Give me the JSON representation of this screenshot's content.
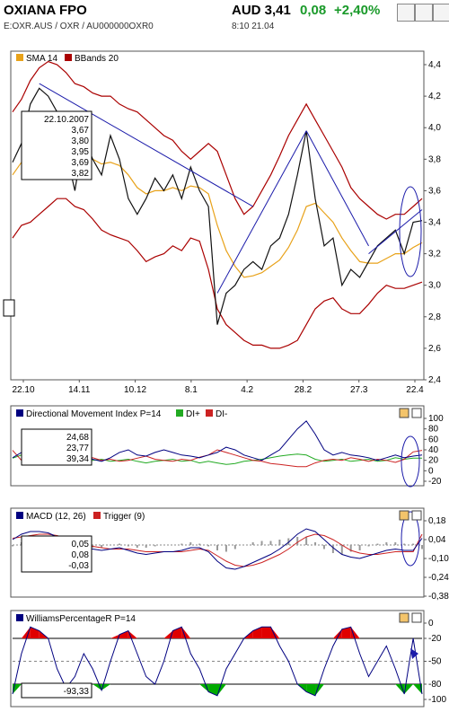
{
  "header": {
    "name": "OXIANA FPO",
    "price": "AUD 3,41",
    "change": "0,08",
    "change_pct": "+2,40%",
    "codes": "E:OXR.AUS  /  OXR  /  AU000000OXR0",
    "time_info": "8:10   21.04"
  },
  "colors": {
    "price": "#111111",
    "sma": "#e8a21a",
    "bbands": "#aa0000",
    "dmi": "#000080",
    "di_plus": "#22aa22",
    "di_minus": "#cc2222",
    "macd": "#000080",
    "trigger": "#cc2222",
    "williams": "#000080",
    "fill_red": "#e00000",
    "fill_green": "#00aa00",
    "trend": "#1c1caa"
  },
  "chart_data": [
    {
      "type": "line",
      "title": "",
      "legend": [
        "SMA 14",
        "BBands 20"
      ],
      "x_ticks": [
        "22.10",
        "14.11",
        "10.12",
        "8.1",
        "4.2",
        "28.2",
        "27.3",
        "22.4"
      ],
      "ylim": [
        2.4,
        4.4
      ],
      "y_ticks": [
        "4,4",
        "4,2",
        "4,0",
        "3,8",
        "3,6",
        "3,4",
        "3,2",
        "3,0",
        "2,8",
        "2,6",
        "2,4"
      ],
      "series": [
        {
          "name": "price",
          "values": [
            3.78,
            3.9,
            4.15,
            4.25,
            4.2,
            4.1,
            3.85,
            3.6,
            3.95,
            3.8,
            3.7,
            3.95,
            3.8,
            3.55,
            3.45,
            3.55,
            3.68,
            3.6,
            3.7,
            3.55,
            3.75,
            3.6,
            3.5,
            2.75,
            2.95,
            3.0,
            3.1,
            3.15,
            3.1,
            3.25,
            3.3,
            3.45,
            3.7,
            3.98,
            3.55,
            3.25,
            3.3,
            3.0,
            3.1,
            3.05,
            3.15,
            3.25,
            3.3,
            3.35,
            3.2,
            3.4,
            3.41
          ]
        },
        {
          "name": "SMA 14",
          "values": [
            3.7,
            3.78,
            3.86,
            3.92,
            3.96,
            3.97,
            3.95,
            3.88,
            3.84,
            3.8,
            3.77,
            3.78,
            3.76,
            3.7,
            3.62,
            3.58,
            3.6,
            3.6,
            3.62,
            3.6,
            3.63,
            3.62,
            3.58,
            3.38,
            3.22,
            3.12,
            3.05,
            3.06,
            3.08,
            3.12,
            3.16,
            3.24,
            3.35,
            3.5,
            3.52,
            3.46,
            3.4,
            3.3,
            3.22,
            3.15,
            3.14,
            3.14,
            3.17,
            3.2,
            3.2,
            3.24,
            3.27
          ]
        },
        {
          "name": "BBands upper",
          "values": [
            4.1,
            4.18,
            4.3,
            4.38,
            4.42,
            4.4,
            4.35,
            4.28,
            4.26,
            4.22,
            4.2,
            4.2,
            4.15,
            4.12,
            4.1,
            4.05,
            4.0,
            3.95,
            3.92,
            3.85,
            3.8,
            3.85,
            3.9,
            3.85,
            3.7,
            3.55,
            3.45,
            3.5,
            3.6,
            3.7,
            3.82,
            3.95,
            4.05,
            4.15,
            4.05,
            3.95,
            3.85,
            3.75,
            3.62,
            3.55,
            3.5,
            3.45,
            3.42,
            3.45,
            3.45,
            3.5,
            3.55
          ]
        },
        {
          "name": "BBands lower",
          "values": [
            3.3,
            3.38,
            3.4,
            3.45,
            3.5,
            3.55,
            3.55,
            3.5,
            3.48,
            3.42,
            3.35,
            3.32,
            3.3,
            3.28,
            3.22,
            3.15,
            3.18,
            3.2,
            3.25,
            3.22,
            3.3,
            3.28,
            3.1,
            2.85,
            2.75,
            2.7,
            2.65,
            2.62,
            2.62,
            2.6,
            2.6,
            2.62,
            2.65,
            2.75,
            2.85,
            2.9,
            2.92,
            2.85,
            2.82,
            2.82,
            2.88,
            2.95,
            3.0,
            2.98,
            2.98,
            3.0,
            3.02
          ]
        }
      ],
      "data_box": {
        "date": "22.10.2007",
        "values": [
          "3,67",
          "3,80",
          "3,95",
          "3,69",
          "3,82"
        ]
      }
    },
    {
      "type": "line",
      "title": "",
      "legend": [
        "Directional Movement Index P=14",
        "DI+",
        "DI-"
      ],
      "ylim": [
        -20,
        100
      ],
      "y_ticks": [
        "100",
        "80",
        "60",
        "40",
        "20",
        "0",
        "-20"
      ],
      "series": [
        {
          "name": "Directional Movement Index P=14",
          "values": [
            25,
            35,
            40,
            30,
            20,
            15,
            20,
            25,
            30,
            22,
            18,
            25,
            35,
            40,
            30,
            28,
            35,
            40,
            35,
            30,
            28,
            25,
            30,
            35,
            45,
            40,
            30,
            25,
            20,
            30,
            40,
            60,
            80,
            95,
            70,
            40,
            30,
            35,
            30,
            28,
            25,
            20,
            25,
            30,
            25,
            28,
            30
          ]
        },
        {
          "name": "DI+",
          "values": [
            24,
            30,
            28,
            20,
            18,
            22,
            25,
            20,
            18,
            20,
            22,
            18,
            20,
            22,
            18,
            15,
            18,
            20,
            22,
            18,
            20,
            15,
            18,
            15,
            12,
            14,
            18,
            20,
            22,
            25,
            28,
            30,
            32,
            30,
            22,
            18,
            20,
            22,
            18,
            20,
            22,
            18,
            20,
            25,
            22,
            24,
            24
          ]
        },
        {
          "name": "DI-",
          "values": [
            39,
            20,
            15,
            18,
            22,
            25,
            20,
            18,
            22,
            25,
            20,
            22,
            18,
            20,
            24,
            28,
            22,
            20,
            18,
            22,
            20,
            26,
            30,
            40,
            35,
            30,
            25,
            20,
            18,
            14,
            12,
            10,
            8,
            8,
            15,
            20,
            22,
            20,
            25,
            22,
            18,
            22,
            20,
            16,
            22,
            36,
            39
          ]
        }
      ],
      "data_box": {
        "values": [
          "24,68",
          "23,77",
          "39,34"
        ]
      }
    },
    {
      "type": "line",
      "title": "",
      "legend": [
        "MACD (12, 26)",
        "Trigger (9)"
      ],
      "ylim": [
        -0.38,
        0.18
      ],
      "y_ticks": [
        "0,18",
        "0,04",
        "-0,10",
        "-0,24",
        "-0,38"
      ],
      "series": [
        {
          "name": "MACD (12, 26)",
          "values": [
            0.04,
            0.08,
            0.1,
            0.1,
            0.09,
            0.06,
            0.03,
            0.0,
            -0.02,
            -0.03,
            -0.04,
            -0.03,
            -0.02,
            -0.04,
            -0.06,
            -0.07,
            -0.06,
            -0.05,
            -0.05,
            -0.04,
            -0.02,
            -0.02,
            -0.05,
            -0.12,
            -0.17,
            -0.18,
            -0.16,
            -0.13,
            -0.1,
            -0.07,
            -0.03,
            0.02,
            0.08,
            0.12,
            0.1,
            0.04,
            -0.02,
            -0.07,
            -0.09,
            -0.1,
            -0.08,
            -0.06,
            -0.04,
            -0.03,
            -0.04,
            -0.04,
            0.05
          ]
        },
        {
          "name": "Trigger (9)",
          "values": [
            0.05,
            0.06,
            0.07,
            0.08,
            0.08,
            0.07,
            0.05,
            0.03,
            0.01,
            -0.01,
            -0.02,
            -0.03,
            -0.03,
            -0.03,
            -0.04,
            -0.05,
            -0.05,
            -0.05,
            -0.05,
            -0.05,
            -0.04,
            -0.03,
            -0.04,
            -0.08,
            -0.12,
            -0.15,
            -0.16,
            -0.15,
            -0.13,
            -0.1,
            -0.07,
            -0.03,
            0.02,
            0.06,
            0.08,
            0.07,
            0.04,
            0.0,
            -0.04,
            -0.06,
            -0.07,
            -0.07,
            -0.06,
            -0.05,
            -0.05,
            -0.05,
            0.08
          ]
        },
        {
          "name": "histogram",
          "values": [
            -0.01,
            0.02,
            0.03,
            0.02,
            0.01,
            -0.01,
            -0.02,
            -0.03,
            -0.03,
            -0.02,
            -0.02,
            0.0,
            0.01,
            -0.01,
            -0.02,
            -0.02,
            -0.01,
            0.0,
            0.0,
            0.01,
            0.02,
            0.01,
            -0.01,
            -0.04,
            -0.05,
            -0.03,
            0.0,
            0.02,
            0.03,
            0.03,
            0.04,
            0.05,
            0.06,
            0.06,
            0.02,
            -0.03,
            -0.06,
            -0.07,
            -0.05,
            -0.04,
            -0.01,
            0.01,
            0.02,
            0.02,
            0.01,
            0.01,
            -0.03
          ]
        }
      ],
      "data_box": {
        "values": [
          "0,05",
          "0,08",
          "-0,03"
        ]
      }
    },
    {
      "type": "line",
      "title": "",
      "legend": [
        "WilliamsPercentageR P=14"
      ],
      "ylim": [
        -100,
        0
      ],
      "y_ticks": [
        "0",
        "-20",
        "-50",
        "-80",
        "-100"
      ],
      "series": [
        {
          "name": "WilliamsPercentageR P=14",
          "values": [
            -93,
            -40,
            -5,
            -10,
            -20,
            -60,
            -85,
            -70,
            -40,
            -60,
            -88,
            -50,
            -15,
            -10,
            -40,
            -70,
            -80,
            -50,
            -10,
            -5,
            -40,
            -60,
            -90,
            -95,
            -60,
            -40,
            -20,
            -10,
            -5,
            -5,
            -30,
            -50,
            -80,
            -90,
            -95,
            -60,
            -30,
            -8,
            -5,
            -40,
            -70,
            -50,
            -30,
            -60,
            -93,
            -20,
            -93
          ]
        }
      ],
      "data_box": {
        "values": [
          "-93,33"
        ]
      }
    }
  ]
}
